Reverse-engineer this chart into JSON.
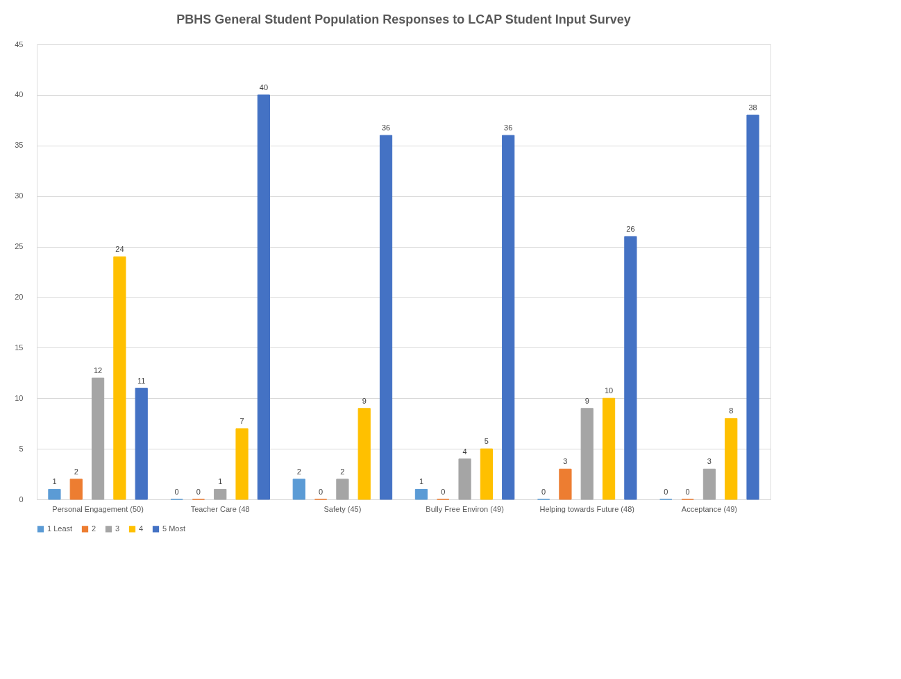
{
  "chart_data": {
    "type": "bar",
    "title": "PBHS General Student Population Responses to LCAP Student Input Survey",
    "categories": [
      "Personal Engagement  (50)",
      "Teacher Care (48",
      "Safety (45)",
      "Bully Free Environ  (49)",
      "Helping towards Future (48)",
      "Acceptance  (49)"
    ],
    "series": [
      {
        "name": "1 Least",
        "color": "#5b9bd5",
        "values": [
          1,
          0,
          2,
          1,
          0,
          0
        ]
      },
      {
        "name": "2",
        "color": "#ed7d31",
        "values": [
          2,
          0,
          0,
          0,
          3,
          0
        ]
      },
      {
        "name": "3",
        "color": "#a5a5a5",
        "values": [
          12,
          1,
          2,
          4,
          9,
          3
        ]
      },
      {
        "name": "4",
        "color": "#ffc000",
        "values": [
          24,
          7,
          9,
          5,
          10,
          8
        ]
      },
      {
        "name": "5 Most",
        "color": "#4472c4",
        "values": [
          11,
          40,
          36,
          36,
          26,
          38
        ]
      }
    ],
    "ylim": [
      0,
      45
    ],
    "yticks": [
      0,
      5,
      10,
      15,
      20,
      25,
      30,
      35,
      40,
      45
    ],
    "grid": "y",
    "legend": "bottom",
    "data_labels": true
  }
}
